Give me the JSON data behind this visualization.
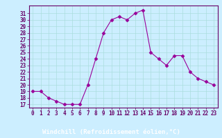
{
  "x": [
    0,
    1,
    2,
    3,
    4,
    5,
    6,
    7,
    8,
    9,
    10,
    11,
    12,
    13,
    14,
    15,
    16,
    17,
    18,
    19,
    20,
    21,
    22,
    23
  ],
  "y": [
    19,
    19,
    18,
    17.5,
    17,
    17,
    17,
    20,
    24,
    28,
    30,
    30.5,
    30,
    31,
    31.5,
    25,
    24,
    23,
    24.5,
    24.5,
    22,
    21,
    20.5,
    20
  ],
  "line_color": "#990099",
  "marker": "D",
  "marker_size": 2.5,
  "bg_color": "#cceeff",
  "plot_bg_color": "#cceeff",
  "grid_color": "#aadddd",
  "xlabel": "Windchill (Refroidissement éolien,°C)",
  "ylabel": "",
  "xlim": [
    -0.5,
    23.5
  ],
  "ylim": [
    16.5,
    32.2
  ],
  "yticks": [
    17,
    18,
    19,
    20,
    21,
    22,
    23,
    24,
    25,
    26,
    27,
    28,
    29,
    30,
    31
  ],
  "xticks": [
    0,
    1,
    2,
    3,
    4,
    5,
    6,
    7,
    8,
    9,
    10,
    11,
    12,
    13,
    14,
    15,
    16,
    17,
    18,
    19,
    20,
    21,
    22,
    23
  ],
  "tick_fontsize": 5.5,
  "xlabel_fontsize": 6.5,
  "tick_color": "#660066",
  "label_color": "#660066",
  "bottom_bg": "#9900cc"
}
